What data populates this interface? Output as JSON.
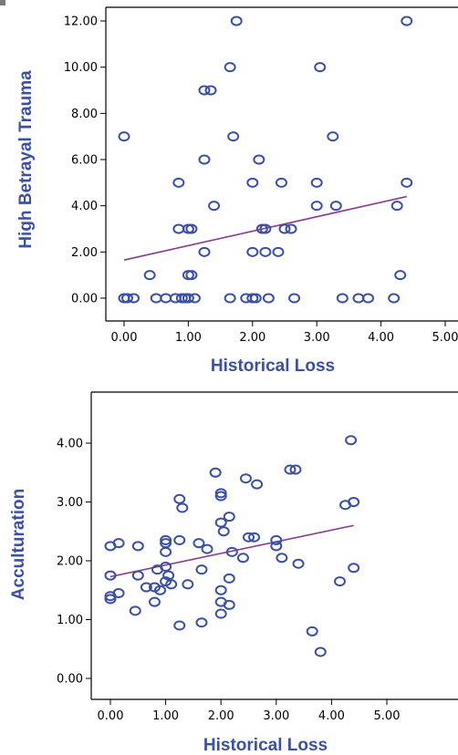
{
  "chart_data": [
    {
      "type": "scatter",
      "xlabel": "Historical Loss",
      "ylabel": "High Betrayal Trauma",
      "xlim": [
        0,
        5
      ],
      "ylim": [
        0,
        12
      ],
      "x_ticks": [
        "0.00",
        "1.00",
        "2.00",
        "3.00",
        "4.00",
        "5.00"
      ],
      "y_ticks": [
        "0.00",
        "2.00",
        "4.00",
        "6.00",
        "8.00",
        "10.00",
        "12.00"
      ],
      "grid": false,
      "legend": "none",
      "colors": {
        "points": "#3a4fa8",
        "fit_line": "#8a3a8c",
        "axis_title": "#3a4fa8"
      },
      "fit_line": {
        "x": [
          0.0,
          4.4
        ],
        "y": [
          1.65,
          4.4
        ]
      },
      "points": [
        {
          "x": 0.0,
          "y": 7
        },
        {
          "x": 0.0,
          "y": 0
        },
        {
          "x": 0.05,
          "y": 0
        },
        {
          "x": 0.15,
          "y": 0
        },
        {
          "x": 0.4,
          "y": 1
        },
        {
          "x": 0.5,
          "y": 0
        },
        {
          "x": 0.65,
          "y": 0
        },
        {
          "x": 0.8,
          "y": 0
        },
        {
          "x": 0.85,
          "y": 5
        },
        {
          "x": 0.85,
          "y": 3
        },
        {
          "x": 0.9,
          "y": 0
        },
        {
          "x": 0.95,
          "y": 0
        },
        {
          "x": 1.0,
          "y": 3
        },
        {
          "x": 1.0,
          "y": 1
        },
        {
          "x": 1.0,
          "y": 0
        },
        {
          "x": 1.05,
          "y": 3
        },
        {
          "x": 1.05,
          "y": 1
        },
        {
          "x": 1.1,
          "y": 0
        },
        {
          "x": 1.25,
          "y": 9
        },
        {
          "x": 1.25,
          "y": 6
        },
        {
          "x": 1.25,
          "y": 2
        },
        {
          "x": 1.35,
          "y": 9
        },
        {
          "x": 1.4,
          "y": 4
        },
        {
          "x": 1.65,
          "y": 10
        },
        {
          "x": 1.65,
          "y": 0
        },
        {
          "x": 1.7,
          "y": 7
        },
        {
          "x": 1.75,
          "y": 12
        },
        {
          "x": 1.9,
          "y": 0
        },
        {
          "x": 2.0,
          "y": 5
        },
        {
          "x": 2.0,
          "y": 2
        },
        {
          "x": 2.0,
          "y": 0
        },
        {
          "x": 2.05,
          "y": 0
        },
        {
          "x": 2.1,
          "y": 6
        },
        {
          "x": 2.15,
          "y": 3
        },
        {
          "x": 2.2,
          "y": 3
        },
        {
          "x": 2.2,
          "y": 2
        },
        {
          "x": 2.25,
          "y": 0
        },
        {
          "x": 2.4,
          "y": 2
        },
        {
          "x": 2.45,
          "y": 5
        },
        {
          "x": 2.5,
          "y": 3
        },
        {
          "x": 2.6,
          "y": 3
        },
        {
          "x": 2.65,
          "y": 0
        },
        {
          "x": 3.0,
          "y": 5
        },
        {
          "x": 3.0,
          "y": 4
        },
        {
          "x": 3.05,
          "y": 10
        },
        {
          "x": 3.25,
          "y": 7
        },
        {
          "x": 3.3,
          "y": 4
        },
        {
          "x": 3.4,
          "y": 0
        },
        {
          "x": 3.65,
          "y": 0
        },
        {
          "x": 3.8,
          "y": 0
        },
        {
          "x": 4.2,
          "y": 0
        },
        {
          "x": 4.25,
          "y": 4
        },
        {
          "x": 4.3,
          "y": 1
        },
        {
          "x": 4.4,
          "y": 12
        },
        {
          "x": 4.4,
          "y": 5
        }
      ]
    },
    {
      "type": "scatter",
      "xlabel": "Historical Loss",
      "ylabel": "Acculturation",
      "xlim": [
        0,
        5
      ],
      "ylim": [
        0,
        4.5
      ],
      "x_ticks": [
        "0.00",
        "1.00",
        "2.00",
        "3.00",
        "4.00",
        "5.00"
      ],
      "y_ticks": [
        "0.00",
        "1.00",
        "2.00",
        "3.00",
        "4.00"
      ],
      "grid": false,
      "legend": "none",
      "colors": {
        "points": "#3a4fa8",
        "fit_line": "#8a3a8c",
        "axis_title": "#3a4fa8"
      },
      "fit_line": {
        "x": [
          0.0,
          4.4
        ],
        "y": [
          1.73,
          2.6
        ]
      },
      "points": [
        {
          "x": 0.0,
          "y": 2.25
        },
        {
          "x": 0.0,
          "y": 1.75
        },
        {
          "x": 0.0,
          "y": 1.4
        },
        {
          "x": 0.0,
          "y": 1.35
        },
        {
          "x": 0.15,
          "y": 2.3
        },
        {
          "x": 0.15,
          "y": 1.45
        },
        {
          "x": 0.45,
          "y": 1.15
        },
        {
          "x": 0.5,
          "y": 2.25
        },
        {
          "x": 0.5,
          "y": 1.75
        },
        {
          "x": 0.65,
          "y": 1.55
        },
        {
          "x": 0.8,
          "y": 1.55
        },
        {
          "x": 0.8,
          "y": 1.3
        },
        {
          "x": 0.85,
          "y": 1.85
        },
        {
          "x": 0.9,
          "y": 1.5
        },
        {
          "x": 1.0,
          "y": 2.35
        },
        {
          "x": 1.0,
          "y": 2.3
        },
        {
          "x": 1.0,
          "y": 2.15
        },
        {
          "x": 1.0,
          "y": 1.9
        },
        {
          "x": 1.0,
          "y": 1.65
        },
        {
          "x": 1.05,
          "y": 1.75
        },
        {
          "x": 1.1,
          "y": 1.6
        },
        {
          "x": 1.25,
          "y": 3.05
        },
        {
          "x": 1.25,
          "y": 2.35
        },
        {
          "x": 1.25,
          "y": 0.9
        },
        {
          "x": 1.3,
          "y": 2.9
        },
        {
          "x": 1.4,
          "y": 1.6
        },
        {
          "x": 1.6,
          "y": 2.3
        },
        {
          "x": 1.65,
          "y": 1.85
        },
        {
          "x": 1.65,
          "y": 0.95
        },
        {
          "x": 1.75,
          "y": 2.2
        },
        {
          "x": 1.9,
          "y": 3.5
        },
        {
          "x": 2.0,
          "y": 3.15
        },
        {
          "x": 2.0,
          "y": 3.1
        },
        {
          "x": 2.0,
          "y": 2.65
        },
        {
          "x": 2.0,
          "y": 1.5
        },
        {
          "x": 2.0,
          "y": 1.3
        },
        {
          "x": 2.0,
          "y": 1.1
        },
        {
          "x": 2.05,
          "y": 2.5
        },
        {
          "x": 2.15,
          "y": 2.75
        },
        {
          "x": 2.15,
          "y": 1.7
        },
        {
          "x": 2.15,
          "y": 1.25
        },
        {
          "x": 2.2,
          "y": 2.15
        },
        {
          "x": 2.4,
          "y": 2.05
        },
        {
          "x": 2.45,
          "y": 3.4
        },
        {
          "x": 2.5,
          "y": 2.4
        },
        {
          "x": 2.6,
          "y": 2.4
        },
        {
          "x": 2.65,
          "y": 3.3
        },
        {
          "x": 3.0,
          "y": 2.35
        },
        {
          "x": 3.0,
          "y": 2.25
        },
        {
          "x": 3.1,
          "y": 2.05
        },
        {
          "x": 3.25,
          "y": 3.55
        },
        {
          "x": 3.35,
          "y": 3.55
        },
        {
          "x": 3.4,
          "y": 1.95
        },
        {
          "x": 3.65,
          "y": 0.8
        },
        {
          "x": 3.8,
          "y": 0.45
        },
        {
          "x": 4.15,
          "y": 1.65
        },
        {
          "x": 4.25,
          "y": 2.95
        },
        {
          "x": 4.35,
          "y": 4.05
        },
        {
          "x": 4.4,
          "y": 3.0
        },
        {
          "x": 4.4,
          "y": 1.88
        }
      ]
    }
  ]
}
